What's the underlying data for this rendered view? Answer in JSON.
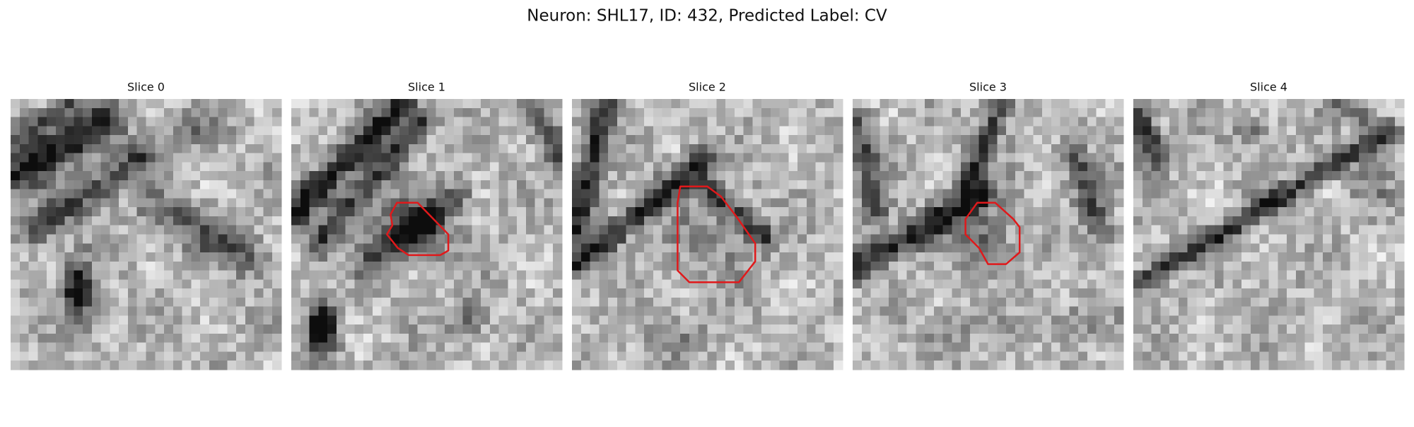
{
  "header": {
    "title": "Neuron: SHL17, ID: 432, Predicted Label: CV"
  },
  "panels": [
    {
      "title": "Slice 0"
    },
    {
      "title": "Slice 1"
    },
    {
      "title": "Slice 2"
    },
    {
      "title": "Slice 3"
    },
    {
      "title": "Slice 4"
    }
  ]
}
